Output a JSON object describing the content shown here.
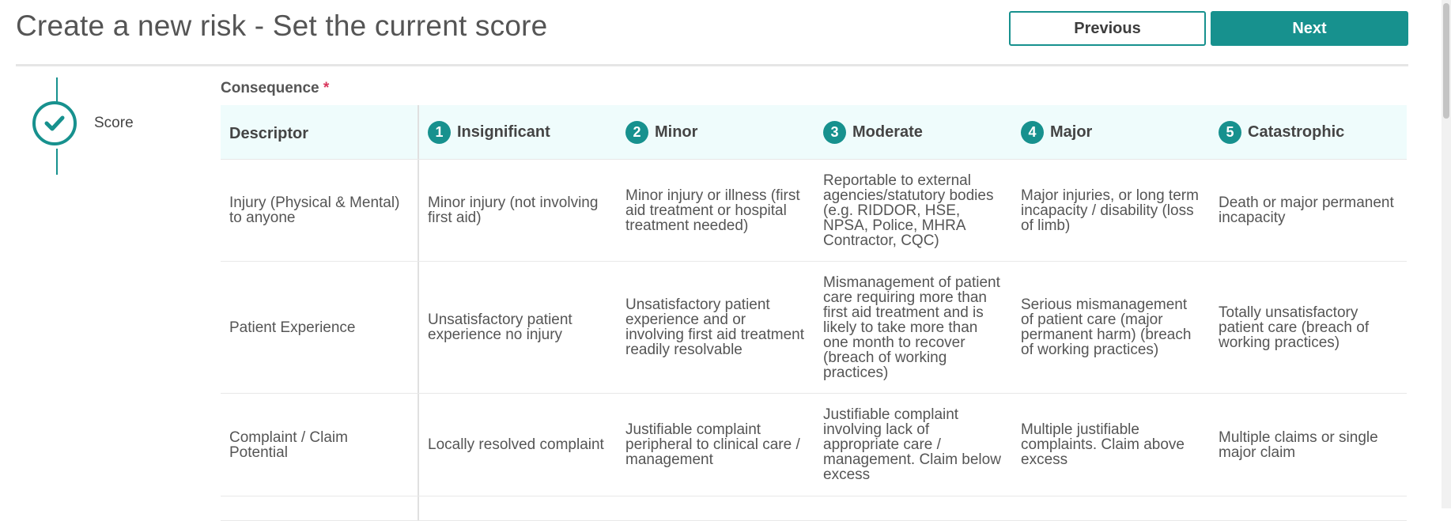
{
  "page": {
    "title": "Create a new risk - Set the current score",
    "previous_label": "Previous",
    "next_label": "Next"
  },
  "stepper": {
    "step_label": "Score",
    "status": "complete",
    "color": "#17918e"
  },
  "consequence": {
    "label": "Consequence",
    "required_marker": "*"
  },
  "table": {
    "descriptor_header": "Descriptor",
    "levels": [
      {
        "number": "1",
        "label": "Insignificant"
      },
      {
        "number": "2",
        "label": "Minor"
      },
      {
        "number": "3",
        "label": "Moderate"
      },
      {
        "number": "4",
        "label": "Major"
      },
      {
        "number": "5",
        "label": "Catastrophic"
      }
    ],
    "rows": [
      {
        "descriptor": "Injury (Physical & Mental) to anyone",
        "cells": [
          "Minor injury (not involving first aid)",
          "Minor injury or illness (first aid treatment or hospital treatment needed)",
          "Reportable to external agencies/statutory bodies (e.g. RIDDOR, HSE, NPSA, Police, MHRA Contractor, CQC)",
          "Major injuries, or long term incapacity / disability (loss of limb)",
          "Death or major permanent incapacity"
        ]
      },
      {
        "descriptor": "Patient Experience",
        "cells": [
          "Unsatisfactory patient experience no injury",
          "Unsatisfactory patient experience and or involving first aid treatment readily resolvable",
          "Mismanagement of patient care requiring more than first aid treatment and is likely to take more than one month to recover (breach of working practices)",
          "Serious mismanagement of patient care (major permanent harm) (breach of working practices)",
          "Totally unsatisfactory patient care (breach of working practices)"
        ]
      },
      {
        "descriptor": "Complaint / Claim Potential",
        "cells": [
          "Locally resolved complaint",
          "Justifiable complaint peripheral to clinical care / management",
          "Justifiable complaint involving lack of appropriate care / management. Claim below excess",
          "Multiple justifiable complaints. Claim above excess",
          "Multiple claims or single major claim"
        ]
      }
    ]
  },
  "colors": {
    "accent": "#17918e",
    "header_bg": "#effcfc",
    "required": "#d9365c"
  }
}
